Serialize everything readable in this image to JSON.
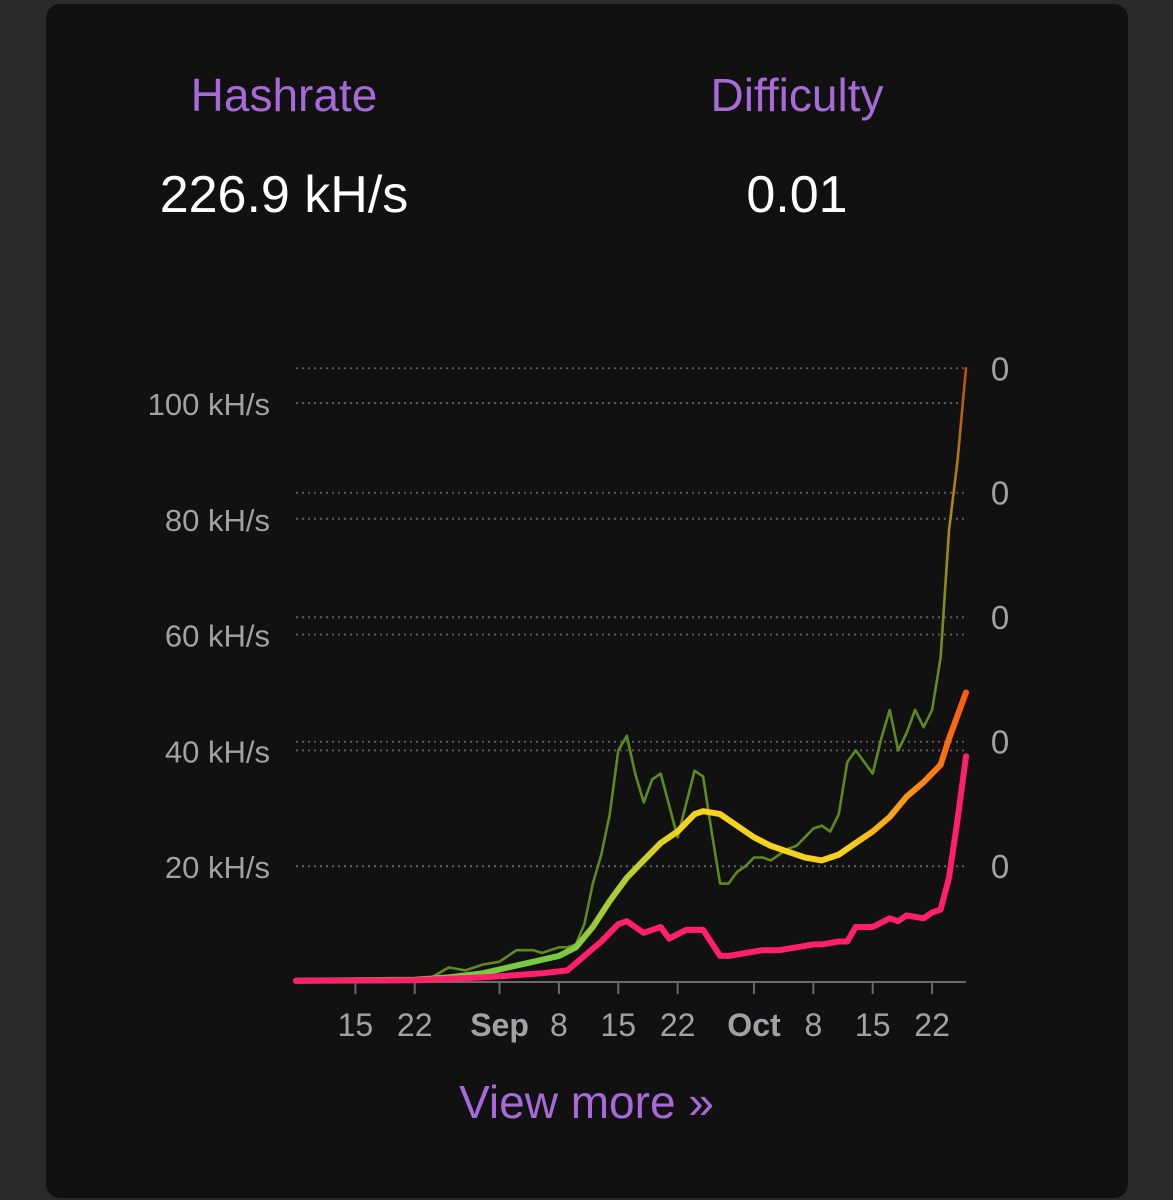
{
  "stats": {
    "hashrate_label": "Hashrate",
    "hashrate_value": "226.9 kH/s",
    "difficulty_label": "Difficulty",
    "difficulty_value": "0.01"
  },
  "link": {
    "view_more": "View more »"
  },
  "colors": {
    "card": "#111112",
    "accent": "#a86ad8",
    "raw_hashrate": "#5e8a1e",
    "difficulty": "#ff1f6b",
    "smooth_start": "#7ac943",
    "smooth_mid": "#f5d31d",
    "smooth_end": "#ff5a10"
  },
  "chart_data": {
    "type": "line",
    "x_start": "2023-08-08",
    "x_end": "2023-10-26",
    "x_ticks": [
      {
        "date": "2023-08-15",
        "label": "15",
        "bold": false
      },
      {
        "date": "2023-08-22",
        "label": "22",
        "bold": false
      },
      {
        "date": "2023-09-01",
        "label": "Sep",
        "bold": true
      },
      {
        "date": "2023-09-08",
        "label": "8",
        "bold": false
      },
      {
        "date": "2023-09-15",
        "label": "15",
        "bold": false
      },
      {
        "date": "2023-09-22",
        "label": "22",
        "bold": false
      },
      {
        "date": "2023-10-01",
        "label": "Oct",
        "bold": true
      },
      {
        "date": "2023-10-08",
        "label": "8",
        "bold": false
      },
      {
        "date": "2023-10-15",
        "label": "15",
        "bold": false
      },
      {
        "date": "2023-10-22",
        "label": "22",
        "bold": false
      }
    ],
    "y_left": {
      "ylim": [
        0,
        100
      ],
      "ticks": [
        {
          "value": 20,
          "label": "20 kH/s"
        },
        {
          "value": 40,
          "label": "40 kH/s"
        },
        {
          "value": 60,
          "label": "60 kH/s"
        },
        {
          "value": 80,
          "label": "80 kH/s"
        },
        {
          "value": 100,
          "label": "100 kH/s"
        }
      ]
    },
    "y_right": {
      "ticks": [
        {
          "value": 20,
          "label": "0"
        },
        {
          "value": 41.5,
          "label": "0"
        },
        {
          "value": 63,
          "label": "0"
        },
        {
          "value": 84.5,
          "label": "0"
        },
        {
          "value": 106,
          "label": "0"
        }
      ]
    },
    "grid": true,
    "series": [
      {
        "style": "raw",
        "x": [
          "2023-08-08",
          "2023-08-15",
          "2023-08-22",
          "2023-08-24",
          "2023-08-26",
          "2023-08-28",
          "2023-08-30",
          "2023-09-01",
          "2023-09-03",
          "2023-09-05",
          "2023-09-06",
          "2023-09-08",
          "2023-09-09",
          "2023-09-10",
          "2023-09-11",
          "2023-09-12",
          "2023-09-13",
          "2023-09-14",
          "2023-09-15",
          "2023-09-16",
          "2023-09-17",
          "2023-09-18",
          "2023-09-19",
          "2023-09-20",
          "2023-09-22",
          "2023-09-24",
          "2023-09-25",
          "2023-09-26",
          "2023-09-27",
          "2023-09-28",
          "2023-09-29",
          "2023-09-30",
          "2023-10-01",
          "2023-10-02",
          "2023-10-03",
          "2023-10-04",
          "2023-10-05",
          "2023-10-06",
          "2023-10-07",
          "2023-10-08",
          "2023-10-09",
          "2023-10-10",
          "2023-10-11",
          "2023-10-12",
          "2023-10-13",
          "2023-10-14",
          "2023-10-15",
          "2023-10-16",
          "2023-10-17",
          "2023-10-18",
          "2023-10-19",
          "2023-10-20",
          "2023-10-21",
          "2023-10-22",
          "2023-10-23",
          "2023-10-24",
          "2023-10-25",
          "2023-10-26"
        ],
        "values": [
          0.2,
          0.3,
          0.5,
          0.8,
          2.5,
          2,
          3,
          3.5,
          5.5,
          5.5,
          5,
          6,
          6,
          6.5,
          10,
          17,
          22,
          29,
          40,
          42.5,
          36,
          31,
          35,
          36,
          25,
          36.5,
          35.5,
          26,
          17,
          17,
          19,
          20,
          21.5,
          21.5,
          21,
          22,
          23,
          23.5,
          25,
          26.5,
          27,
          26,
          29,
          38,
          40,
          38,
          36,
          42,
          47,
          40,
          43,
          47,
          44,
          47,
          56,
          78,
          90,
          106
        ]
      },
      {
        "style": "smooth",
        "x": [
          "2023-08-08",
          "2023-08-22",
          "2023-08-26",
          "2023-08-30",
          "2023-09-02",
          "2023-09-05",
          "2023-09-08",
          "2023-09-10",
          "2023-09-12",
          "2023-09-14",
          "2023-09-16",
          "2023-09-18",
          "2023-09-20",
          "2023-09-22",
          "2023-09-24",
          "2023-09-25",
          "2023-09-27",
          "2023-09-29",
          "2023-10-01",
          "2023-10-03",
          "2023-10-05",
          "2023-10-07",
          "2023-10-09",
          "2023-10-11",
          "2023-10-13",
          "2023-10-15",
          "2023-10-17",
          "2023-10-19",
          "2023-10-21",
          "2023-10-23",
          "2023-10-24",
          "2023-10-25",
          "2023-10-26"
        ],
        "values": [
          0.2,
          0.4,
          0.8,
          1.5,
          2.5,
          3.5,
          4.5,
          6,
          9.5,
          14,
          18,
          21,
          24,
          26,
          29,
          29.5,
          29,
          27,
          25,
          23.5,
          22.5,
          21.5,
          21,
          22,
          24,
          26,
          28.5,
          32,
          34.5,
          37.5,
          42,
          46,
          50
        ]
      },
      {
        "style": "difficulty",
        "x": [
          "2023-08-08",
          "2023-08-22",
          "2023-08-30",
          "2023-09-03",
          "2023-09-06",
          "2023-09-09",
          "2023-09-11",
          "2023-09-13",
          "2023-09-15",
          "2023-09-16",
          "2023-09-18",
          "2023-09-20",
          "2023-09-21",
          "2023-09-23",
          "2023-09-25",
          "2023-09-27",
          "2023-09-28",
          "2023-09-30",
          "2023-10-02",
          "2023-10-04",
          "2023-10-06",
          "2023-10-08",
          "2023-10-09",
          "2023-10-11",
          "2023-10-12",
          "2023-10-13",
          "2023-10-14",
          "2023-10-15",
          "2023-10-17",
          "2023-10-18",
          "2023-10-19",
          "2023-10-21",
          "2023-10-22",
          "2023-10-23",
          "2023-10-24",
          "2023-10-25",
          "2023-10-26"
        ],
        "values": [
          0.2,
          0.3,
          0.8,
          1.2,
          1.5,
          2,
          4.5,
          7,
          10,
          10.5,
          8.5,
          9.5,
          7.5,
          9,
          9,
          4.5,
          4.5,
          5,
          5.5,
          5.5,
          6,
          6.5,
          6.5,
          7,
          7,
          9.5,
          9.5,
          9.5,
          11,
          10.5,
          11.5,
          11,
          12,
          12.5,
          18,
          28,
          39
        ]
      }
    ]
  }
}
